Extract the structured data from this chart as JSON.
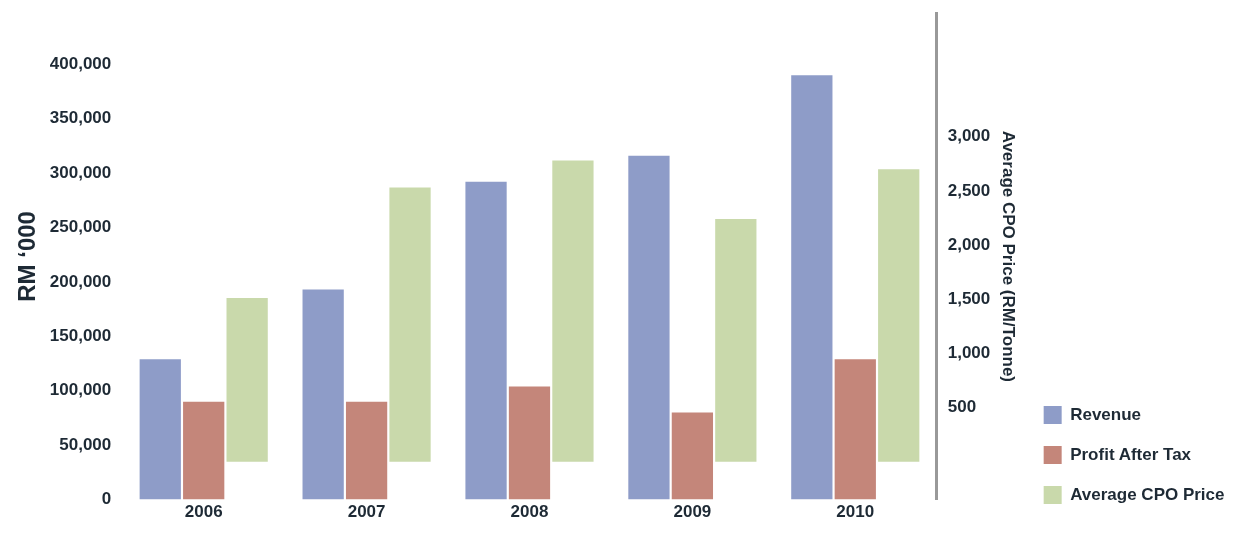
{
  "chart_data": {
    "type": "bar",
    "ylabel": "RM ‘000",
    "y2label": "Average CPO Price (RM/Tonne)",
    "categories": [
      "2006",
      "2007",
      "2008",
      "2009",
      "2010"
    ],
    "series": [
      {
        "name": "Revenue",
        "color": "#8e9cc8",
        "values": [
          129000,
          193000,
          292000,
          316000,
          390000
        ]
      },
      {
        "name": "Profit After Tax",
        "color": "#c4867a",
        "values": [
          90000,
          90000,
          104000,
          80000,
          129000
        ]
      },
      {
        "name": "Average CPO Price",
        "color": "#c9d9ab",
        "axis": "y2",
        "values": [
          1510,
          2530,
          2780,
          2240,
          2700
        ]
      }
    ],
    "ylim": [
      0,
      447000
    ],
    "yticks": [
      0,
      {
        "value": 50000,
        "label": "50,000"
      },
      {
        "value": 100000,
        "label": "100,000"
      },
      {
        "value": 150000,
        "label": "150,000"
      },
      {
        "value": 200000,
        "label": "200,000"
      },
      {
        "value": 250000,
        "label": "250,000"
      },
      {
        "value": 300000,
        "label": "300,000"
      },
      {
        "value": 350000,
        "label": "350,000"
      },
      {
        "value": 400000,
        "label": "400,000"
      }
    ],
    "y2lim": [
      -350,
      4140
    ],
    "y2ticks": [
      500,
      {
        "value": 1000,
        "label": "1,000"
      },
      {
        "value": 1500,
        "label": "1,500"
      },
      {
        "value": 2000,
        "label": "2,000"
      },
      {
        "value": 2500,
        "label": "2,500"
      },
      {
        "value": 3000,
        "label": "3,000"
      }
    ],
    "grid": false,
    "legend": "bottom right"
  }
}
